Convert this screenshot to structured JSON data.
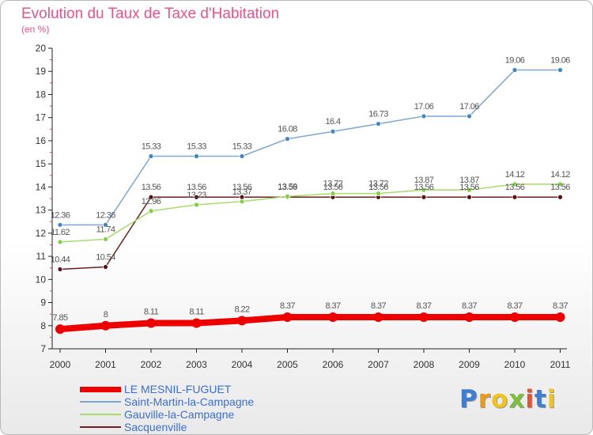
{
  "header": {
    "title": "Evolution du Taux de Taxe d'Habitation",
    "subtitle": "(en %)"
  },
  "brand": {
    "text": "Proxiti",
    "letter_colors": [
      "#3d7ed1",
      "#e89a1c",
      "#f0c419",
      "#7bbf3c",
      "#e8532c",
      "#3d7ed1",
      "#f0c419"
    ]
  },
  "chart_data": {
    "type": "line",
    "title": "Evolution du Taux de Taxe d'Habitation",
    "ylabel": "(en %)",
    "xlabel": "",
    "x": [
      "2000",
      "2001",
      "2002",
      "2003",
      "2004",
      "2005",
      "2006",
      "2007",
      "2008",
      "2009",
      "2010",
      "2011"
    ],
    "ylim": [
      7,
      20
    ],
    "yticks": [
      7,
      8,
      9,
      10,
      11,
      12,
      13,
      14,
      15,
      16,
      17,
      18,
      19,
      20
    ],
    "grid": false,
    "legend_position": "bottom-left",
    "series": [
      {
        "name": "LE MESNIL-FUGUET",
        "color": "#ee0000",
        "width": 8,
        "marker": 6,
        "values": [
          7.85,
          8,
          8.11,
          8.11,
          8.22,
          8.37,
          8.37,
          8.37,
          8.37,
          8.37,
          8.37,
          8.37
        ],
        "labels": [
          "7.85",
          "8",
          "8.11",
          "8.11",
          "8.22",
          "8.37",
          "8.37",
          "8.37",
          "8.37",
          "8.37",
          "8.37",
          "8.37"
        ]
      },
      {
        "name": "Saint-Martin-la-Campagne",
        "color": "#7ba7d0",
        "marker_color": "#3d86c6",
        "width": 1.5,
        "marker": 3,
        "values": [
          12.36,
          12.36,
          15.33,
          15.33,
          15.33,
          16.08,
          16.4,
          16.73,
          17.06,
          17.06,
          19.06,
          19.06
        ],
        "labels": [
          "12.36",
          "12.36",
          "15.33",
          "15.33",
          "15.33",
          "16.08",
          "16.4",
          "16.73",
          "17.06",
          "17.06",
          "19.06",
          "19.06"
        ]
      },
      {
        "name": "Gauville-la-Campagne",
        "color": "#a6dc6a",
        "marker_color": "#7ed242",
        "width": 1.5,
        "marker": 3,
        "values": [
          11.62,
          11.74,
          12.96,
          13.23,
          13.37,
          13.59,
          13.72,
          13.72,
          13.87,
          13.87,
          14.12,
          14.12
        ],
        "labels": [
          "11.62",
          "11.74",
          "12.96",
          "13.23",
          "13.37",
          "13.59",
          "13.72",
          "13.72",
          "13.87",
          "13.87",
          "14.12",
          "14.12"
        ]
      },
      {
        "name": "Sacquenville",
        "color": "#6e1e1e",
        "marker_color": "#5a1212",
        "width": 1.5,
        "marker": 3,
        "values": [
          10.44,
          10.54,
          13.56,
          13.56,
          13.56,
          13.56,
          13.56,
          13.56,
          13.56,
          13.56,
          13.56,
          13.56
        ],
        "labels": [
          "10.44",
          "10.54",
          "13.56",
          "13.56",
          "13.56",
          "13.56",
          "13.56",
          "13.56",
          "13.56",
          "13.56",
          "13.56",
          "13.56"
        ]
      }
    ]
  }
}
